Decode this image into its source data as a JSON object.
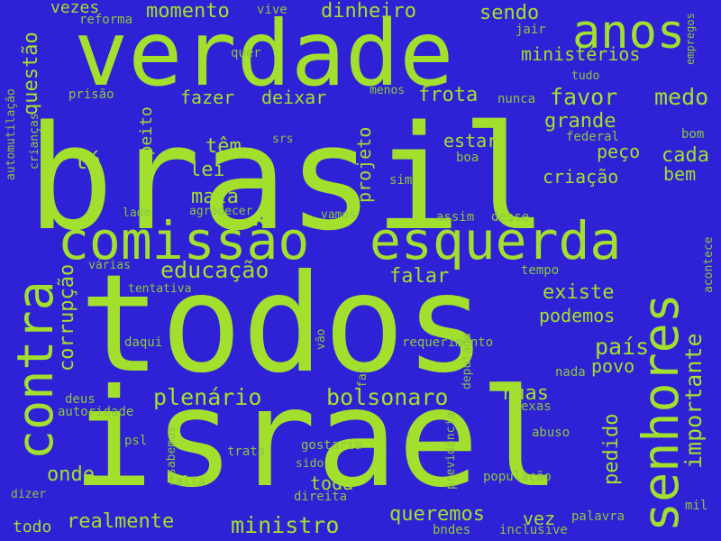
{
  "colors": {
    "background": "#2f21d5",
    "bright": "#a3e02d",
    "dim": "#8cc63f"
  },
  "words": [
    {
      "t": "brasil"
    },
    {
      "t": "todos"
    },
    {
      "t": "israel"
    },
    {
      "t": "verdade"
    },
    {
      "t": "comissão"
    },
    {
      "t": "esquerda"
    },
    {
      "t": "contra"
    },
    {
      "t": "senhores"
    },
    {
      "t": "anos"
    },
    {
      "t": "importante"
    },
    {
      "t": "educação"
    },
    {
      "t": "plenário"
    },
    {
      "t": "bolsonaro"
    },
    {
      "t": "país"
    },
    {
      "t": "corrupção"
    },
    {
      "t": "questão"
    },
    {
      "t": "momento"
    },
    {
      "t": "dinheiro"
    },
    {
      "t": "sendo"
    },
    {
      "t": "ministérios"
    },
    {
      "t": "favor"
    },
    {
      "t": "medo"
    },
    {
      "t": "grande"
    },
    {
      "t": "frota"
    },
    {
      "t": "fazer"
    },
    {
      "t": "deixar"
    },
    {
      "t": "estar"
    },
    {
      "t": "peço"
    },
    {
      "t": "cada"
    },
    {
      "t": "bem"
    },
    {
      "t": "criação"
    },
    {
      "t": "têm"
    },
    {
      "t": "lei"
    },
    {
      "t": "mata"
    },
    {
      "t": "lá"
    },
    {
      "t": "respeito"
    },
    {
      "t": "projeto"
    },
    {
      "t": "falar"
    },
    {
      "t": "existe"
    },
    {
      "t": "podemos"
    },
    {
      "t": "povo"
    },
    {
      "t": "pedido"
    },
    {
      "t": "ruas"
    },
    {
      "t": "onde"
    },
    {
      "t": "realmente"
    },
    {
      "t": "ministro"
    },
    {
      "t": "toda"
    },
    {
      "t": "queremos"
    },
    {
      "t": "vez"
    },
    {
      "t": "todo"
    },
    {
      "t": "vezes"
    },
    {
      "t": "reforma"
    },
    {
      "t": "vive"
    },
    {
      "t": "jair"
    },
    {
      "t": "quer"
    },
    {
      "t": "empregos"
    },
    {
      "t": "automutilação"
    },
    {
      "t": "crianças"
    },
    {
      "t": "prisão"
    },
    {
      "t": "menos"
    },
    {
      "t": "tudo"
    },
    {
      "t": "nunca"
    },
    {
      "t": "federal"
    },
    {
      "t": "bom"
    },
    {
      "t": "srs"
    },
    {
      "t": "boa"
    },
    {
      "t": "sim"
    },
    {
      "t": "lado"
    },
    {
      "t": "agradecer"
    },
    {
      "t": "vamos"
    },
    {
      "t": "assim"
    },
    {
      "t": "desse"
    },
    {
      "t": "várias"
    },
    {
      "t": "tempo"
    },
    {
      "t": "acontece"
    },
    {
      "t": "tentativa"
    },
    {
      "t": "daqui"
    },
    {
      "t": "vão"
    },
    {
      "t": "requerimento"
    },
    {
      "t": "faz"
    },
    {
      "t": "deputada"
    },
    {
      "t": "nada"
    },
    {
      "t": "deus"
    },
    {
      "t": "autoridade"
    },
    {
      "t": "exas"
    },
    {
      "t": "abuso"
    },
    {
      "t": "psl"
    },
    {
      "t": "sabemos"
    },
    {
      "t": "trata"
    },
    {
      "t": "gostaria"
    },
    {
      "t": "previdência"
    },
    {
      "t": "sido"
    },
    {
      "t": "falta"
    },
    {
      "t": "população"
    },
    {
      "t": "dizer"
    },
    {
      "t": "direita"
    },
    {
      "t": "mil"
    },
    {
      "t": "palavra"
    },
    {
      "t": "bndes"
    },
    {
      "t": "inclusive"
    }
  ]
}
